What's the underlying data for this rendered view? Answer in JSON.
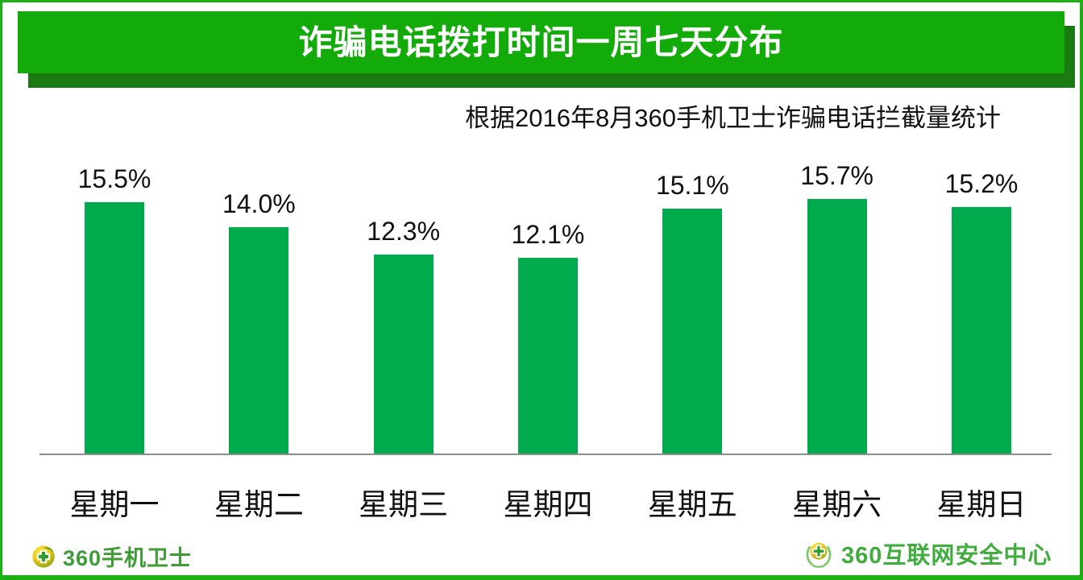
{
  "header": {
    "title": "诈骗电话拨打时间一周七天分布",
    "subtitle": "根据2016年8月360手机卫士诈骗电话拦截量统计"
  },
  "chart_data": {
    "type": "bar",
    "categories": [
      "星期一",
      "星期二",
      "星期三",
      "星期四",
      "星期五",
      "星期六",
      "星期日"
    ],
    "values": [
      15.5,
      14.0,
      12.3,
      12.1,
      15.1,
      15.7,
      15.2
    ],
    "value_labels": [
      "15.5%",
      "14.0%",
      "12.3%",
      "12.1%",
      "15.1%",
      "15.7%",
      "15.2%"
    ],
    "title": "诈骗电话拨打时间一周七天分布",
    "subtitle": "根据2016年8月360手机卫士诈骗电话拦截量统计",
    "xlabel": "",
    "ylabel": "",
    "ylim": [
      0,
      17
    ],
    "unit": "%",
    "grid": false,
    "legend": false,
    "bar_color": "#00ab4e",
    "axis_color": "#8c8c8c",
    "data_label_position": "above-bar"
  },
  "footer": {
    "left_logo": {
      "icon": "360-sphere-cross-icon",
      "text": "360手机卫士"
    },
    "right_logo": {
      "icon": "360-wreath-sphere-icon",
      "text": "360互联网安全中心"
    }
  },
  "colors": {
    "banner": "#12ab0a",
    "banner_shadow": "#1b7a12",
    "frame_border": "#1cb014",
    "bar": "#00ab4e",
    "axis": "#8c8c8c",
    "title_text": "#ffffff",
    "body_text": "#111111",
    "brand_left_text": "#3f9c37",
    "brand_right_text": "#41ad3e"
  }
}
